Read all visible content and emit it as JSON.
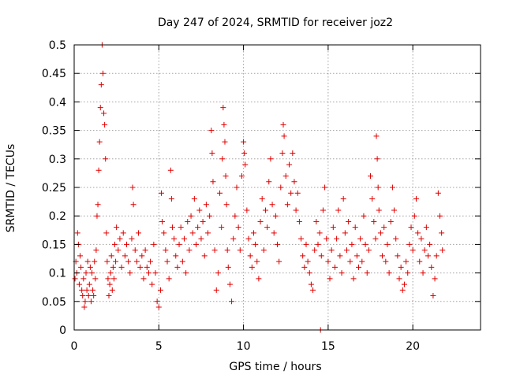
{
  "chart_data": {
    "type": "scatter",
    "title": "Day 247 of 2024, SRMTID for receiver joz2",
    "xlabel": "GPS time / hours",
    "ylabel": "SRMTID / TECUs",
    "xlim": [
      0,
      24
    ],
    "ylim": [
      0,
      0.5
    ],
    "xticks": [
      0,
      5,
      10,
      15,
      20
    ],
    "yticks": [
      0,
      0.05,
      0.1,
      0.15,
      0.2,
      0.25,
      0.3,
      0.35,
      0.4,
      0.45,
      0.5
    ],
    "grid": true,
    "marker": "+",
    "series": [
      {
        "name": "SRMTID",
        "color": "#e00000",
        "points": [
          [
            0.05,
            0.09
          ],
          [
            0.1,
            0.12
          ],
          [
            0.15,
            0.1
          ],
          [
            0.2,
            0.17
          ],
          [
            0.25,
            0.15
          ],
          [
            0.3,
            0.08
          ],
          [
            0.35,
            0.13
          ],
          [
            0.4,
            0.11
          ],
          [
            0.45,
            0.07
          ],
          [
            0.5,
            0.06
          ],
          [
            0.55,
            0.09
          ],
          [
            0.6,
            0.04
          ],
          [
            0.65,
            0.05
          ],
          [
            0.7,
            0.1
          ],
          [
            0.75,
            0.07
          ],
          [
            0.8,
            0.12
          ],
          [
            0.85,
            0.06
          ],
          [
            0.9,
            0.08
          ],
          [
            0.95,
            0.11
          ],
          [
            1.0,
            0.05
          ],
          [
            1.05,
            0.1
          ],
          [
            1.1,
            0.07
          ],
          [
            1.15,
            0.06
          ],
          [
            1.2,
            0.12
          ],
          [
            1.25,
            0.09
          ],
          [
            1.3,
            0.14
          ],
          [
            1.35,
            0.2
          ],
          [
            1.4,
            0.22
          ],
          [
            1.45,
            0.28
          ],
          [
            1.5,
            0.33
          ],
          [
            1.55,
            0.39
          ],
          [
            1.6,
            0.43
          ],
          [
            1.65,
            0.5
          ],
          [
            1.7,
            0.45
          ],
          [
            1.75,
            0.38
          ],
          [
            1.8,
            0.36
          ],
          [
            1.85,
            0.3
          ],
          [
            1.9,
            0.17
          ],
          [
            1.95,
            0.12
          ],
          [
            2.0,
            0.09
          ],
          [
            2.05,
            0.06
          ],
          [
            2.1,
            0.08
          ],
          [
            2.15,
            0.1
          ],
          [
            2.2,
            0.13
          ],
          [
            2.25,
            0.07
          ],
          [
            2.3,
            0.11
          ],
          [
            2.35,
            0.09
          ],
          [
            2.4,
            0.15
          ],
          [
            2.45,
            0.12
          ],
          [
            2.5,
            0.18
          ],
          [
            2.6,
            0.14
          ],
          [
            2.7,
            0.16
          ],
          [
            2.8,
            0.11
          ],
          [
            2.9,
            0.17
          ],
          [
            3.0,
            0.13
          ],
          [
            3.1,
            0.15
          ],
          [
            3.2,
            0.12
          ],
          [
            3.3,
            0.1
          ],
          [
            3.4,
            0.16
          ],
          [
            3.45,
            0.25
          ],
          [
            3.5,
            0.22
          ],
          [
            3.6,
            0.14
          ],
          [
            3.7,
            0.12
          ],
          [
            3.8,
            0.17
          ],
          [
            3.9,
            0.11
          ],
          [
            4.0,
            0.13
          ],
          [
            4.1,
            0.09
          ],
          [
            4.2,
            0.14
          ],
          [
            4.3,
            0.11
          ],
          [
            4.4,
            0.1
          ],
          [
            4.5,
            0.12
          ],
          [
            4.6,
            0.08
          ],
          [
            4.7,
            0.15
          ],
          [
            4.8,
            0.1
          ],
          [
            4.9,
            0.05
          ],
          [
            5.0,
            0.04
          ],
          [
            5.1,
            0.07
          ],
          [
            5.15,
            0.24
          ],
          [
            5.2,
            0.19
          ],
          [
            5.3,
            0.17
          ],
          [
            5.4,
            0.14
          ],
          [
            5.5,
            0.12
          ],
          [
            5.6,
            0.09
          ],
          [
            5.7,
            0.28
          ],
          [
            5.75,
            0.23
          ],
          [
            5.8,
            0.18
          ],
          [
            5.9,
            0.16
          ],
          [
            6.0,
            0.13
          ],
          [
            6.1,
            0.11
          ],
          [
            6.2,
            0.15
          ],
          [
            6.3,
            0.18
          ],
          [
            6.4,
            0.12
          ],
          [
            6.5,
            0.16
          ],
          [
            6.6,
            0.1
          ],
          [
            6.7,
            0.19
          ],
          [
            6.8,
            0.14
          ],
          [
            6.9,
            0.2
          ],
          [
            7.0,
            0.17
          ],
          [
            7.1,
            0.23
          ],
          [
            7.2,
            0.15
          ],
          [
            7.3,
            0.18
          ],
          [
            7.4,
            0.21
          ],
          [
            7.5,
            0.16
          ],
          [
            7.6,
            0.19
          ],
          [
            7.7,
            0.13
          ],
          [
            7.8,
            0.22
          ],
          [
            7.9,
            0.17
          ],
          [
            8.0,
            0.2
          ],
          [
            8.1,
            0.35
          ],
          [
            8.15,
            0.31
          ],
          [
            8.2,
            0.26
          ],
          [
            8.3,
            0.14
          ],
          [
            8.4,
            0.07
          ],
          [
            8.5,
            0.1
          ],
          [
            8.6,
            0.24
          ],
          [
            8.7,
            0.18
          ],
          [
            8.75,
            0.3
          ],
          [
            8.8,
            0.39
          ],
          [
            8.85,
            0.36
          ],
          [
            8.9,
            0.33
          ],
          [
            8.95,
            0.27
          ],
          [
            9.0,
            0.22
          ],
          [
            9.05,
            0.14
          ],
          [
            9.1,
            0.11
          ],
          [
            9.2,
            0.08
          ],
          [
            9.3,
            0.05
          ],
          [
            9.4,
            0.16
          ],
          [
            9.5,
            0.2
          ],
          [
            9.6,
            0.25
          ],
          [
            9.7,
            0.18
          ],
          [
            9.8,
            0.14
          ],
          [
            9.9,
            0.27
          ],
          [
            10.0,
            0.33
          ],
          [
            10.05,
            0.31
          ],
          [
            10.1,
            0.29
          ],
          [
            10.2,
            0.21
          ],
          [
            10.3,
            0.16
          ],
          [
            10.4,
            0.13
          ],
          [
            10.5,
            0.11
          ],
          [
            10.6,
            0.17
          ],
          [
            10.7,
            0.15
          ],
          [
            10.8,
            0.12
          ],
          [
            10.9,
            0.09
          ],
          [
            11.0,
            0.19
          ],
          [
            11.1,
            0.23
          ],
          [
            11.2,
            0.14
          ],
          [
            11.3,
            0.21
          ],
          [
            11.4,
            0.18
          ],
          [
            11.5,
            0.26
          ],
          [
            11.6,
            0.3
          ],
          [
            11.7,
            0.22
          ],
          [
            11.8,
            0.17
          ],
          [
            11.9,
            0.2
          ],
          [
            12.0,
            0.15
          ],
          [
            12.1,
            0.12
          ],
          [
            12.2,
            0.25
          ],
          [
            12.3,
            0.31
          ],
          [
            12.35,
            0.36
          ],
          [
            12.4,
            0.34
          ],
          [
            12.5,
            0.27
          ],
          [
            12.6,
            0.22
          ],
          [
            12.7,
            0.29
          ],
          [
            12.8,
            0.24
          ],
          [
            12.9,
            0.31
          ],
          [
            13.0,
            0.26
          ],
          [
            13.1,
            0.21
          ],
          [
            13.2,
            0.24
          ],
          [
            13.3,
            0.19
          ],
          [
            13.4,
            0.16
          ],
          [
            13.5,
            0.13
          ],
          [
            13.6,
            0.11
          ],
          [
            13.7,
            0.15
          ],
          [
            13.8,
            0.12
          ],
          [
            13.9,
            0.1
          ],
          [
            14.0,
            0.08
          ],
          [
            14.1,
            0.07
          ],
          [
            14.2,
            0.14
          ],
          [
            14.3,
            0.19
          ],
          [
            14.4,
            0.15
          ],
          [
            14.5,
            0.17
          ],
          [
            14.55,
            0.0
          ],
          [
            14.6,
            0.13
          ],
          [
            14.7,
            0.21
          ],
          [
            14.8,
            0.25
          ],
          [
            14.9,
            0.16
          ],
          [
            15.0,
            0.12
          ],
          [
            15.1,
            0.09
          ],
          [
            15.2,
            0.14
          ],
          [
            15.3,
            0.18
          ],
          [
            15.4,
            0.11
          ],
          [
            15.5,
            0.16
          ],
          [
            15.6,
            0.21
          ],
          [
            15.7,
            0.13
          ],
          [
            15.8,
            0.1
          ],
          [
            15.9,
            0.23
          ],
          [
            16.0,
            0.17
          ],
          [
            16.1,
            0.14
          ],
          [
            16.2,
            0.19
          ],
          [
            16.3,
            0.12
          ],
          [
            16.4,
            0.15
          ],
          [
            16.5,
            0.09
          ],
          [
            16.6,
            0.18
          ],
          [
            16.7,
            0.13
          ],
          [
            16.8,
            0.11
          ],
          [
            16.9,
            0.16
          ],
          [
            17.0,
            0.12
          ],
          [
            17.1,
            0.2
          ],
          [
            17.2,
            0.15
          ],
          [
            17.3,
            0.1
          ],
          [
            17.4,
            0.14
          ],
          [
            17.5,
            0.27
          ],
          [
            17.6,
            0.23
          ],
          [
            17.7,
            0.19
          ],
          [
            17.8,
            0.16
          ],
          [
            17.85,
            0.34
          ],
          [
            17.9,
            0.3
          ],
          [
            17.95,
            0.25
          ],
          [
            18.0,
            0.21
          ],
          [
            18.1,
            0.17
          ],
          [
            18.2,
            0.13
          ],
          [
            18.3,
            0.18
          ],
          [
            18.4,
            0.12
          ],
          [
            18.5,
            0.15
          ],
          [
            18.6,
            0.1
          ],
          [
            18.7,
            0.19
          ],
          [
            18.8,
            0.25
          ],
          [
            18.9,
            0.21
          ],
          [
            19.0,
            0.16
          ],
          [
            19.1,
            0.13
          ],
          [
            19.2,
            0.09
          ],
          [
            19.3,
            0.11
          ],
          [
            19.4,
            0.07
          ],
          [
            19.5,
            0.08
          ],
          [
            19.6,
            0.12
          ],
          [
            19.7,
            0.1
          ],
          [
            19.8,
            0.15
          ],
          [
            19.9,
            0.18
          ],
          [
            20.0,
            0.14
          ],
          [
            20.1,
            0.2
          ],
          [
            20.2,
            0.23
          ],
          [
            20.3,
            0.17
          ],
          [
            20.4,
            0.12
          ],
          [
            20.5,
            0.16
          ],
          [
            20.6,
            0.1
          ],
          [
            20.7,
            0.14
          ],
          [
            20.8,
            0.18
          ],
          [
            20.9,
            0.13
          ],
          [
            21.0,
            0.15
          ],
          [
            21.1,
            0.11
          ],
          [
            21.2,
            0.06
          ],
          [
            21.3,
            0.09
          ],
          [
            21.4,
            0.13
          ],
          [
            21.5,
            0.24
          ],
          [
            21.6,
            0.2
          ],
          [
            21.7,
            0.17
          ],
          [
            21.75,
            0.14
          ]
        ]
      }
    ]
  }
}
